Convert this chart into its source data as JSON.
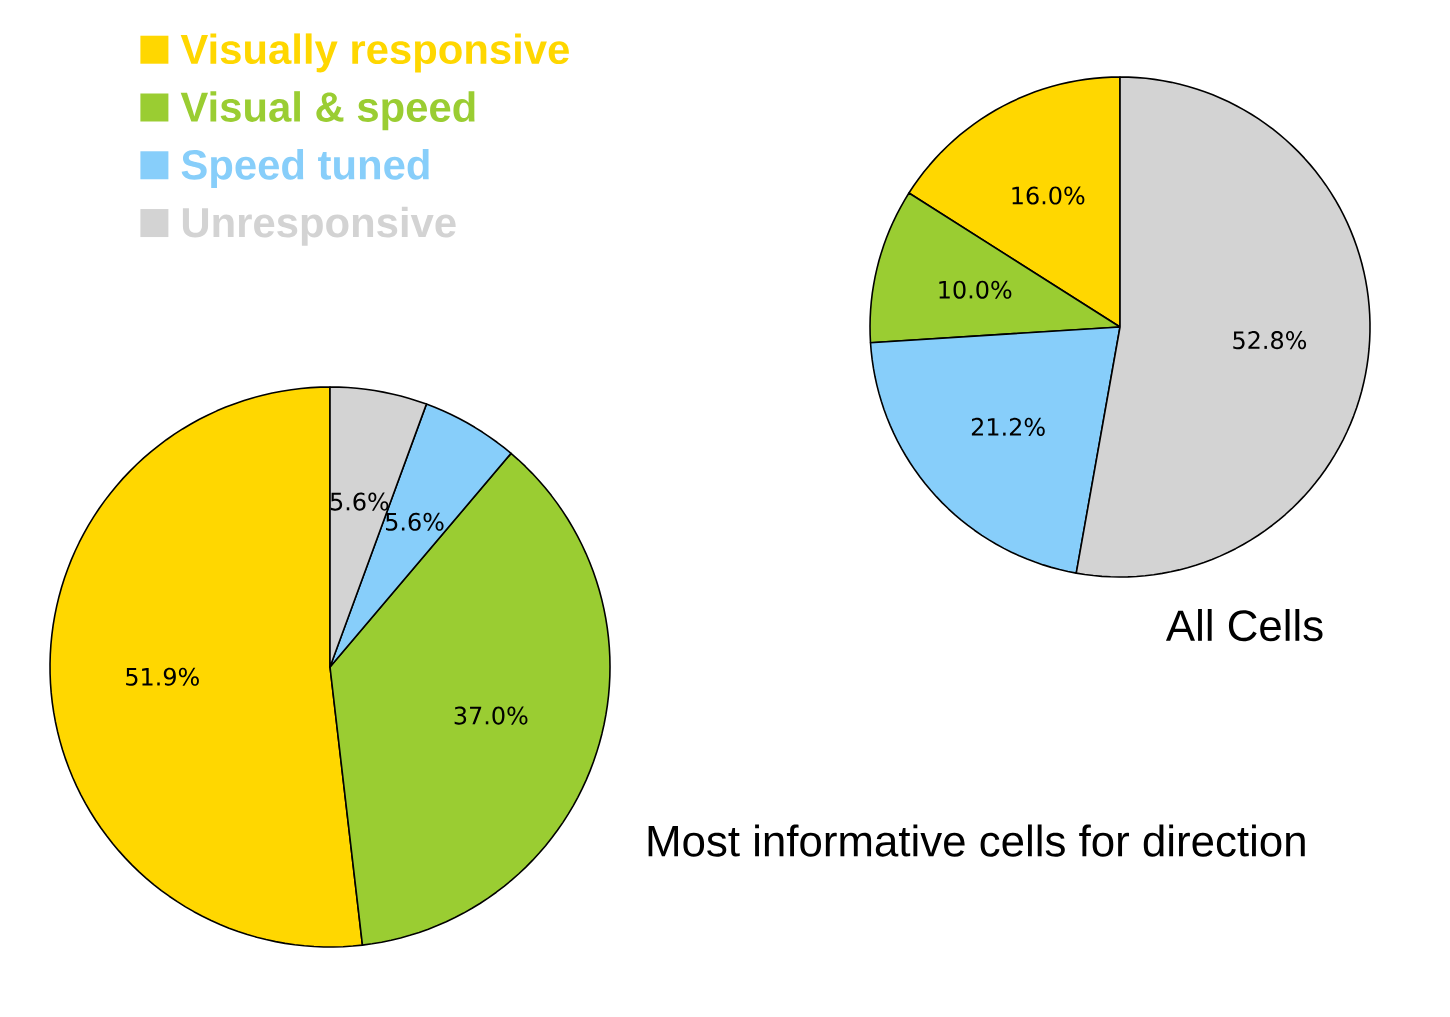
{
  "chart_data": [
    {
      "type": "pie",
      "title": "All Cells",
      "categories": [
        null,
        null,
        null,
        null
      ],
      "values": [
        16.0,
        10.0,
        21.2,
        52.8
      ],
      "colors": [
        "#ffd700",
        "#9acd32",
        "#87cefa",
        "#d3d3d3"
      ],
      "value_labels": [
        "16.0%",
        "10.0%",
        "21.2%",
        "52.8%"
      ]
    },
    {
      "type": "pie",
      "title": "Most informative cells for direction",
      "categories": [
        "Visually responsive",
        "Visual & speed",
        "Speed tuned",
        "Unresponsive"
      ],
      "values": [
        51.9,
        37.0,
        5.6,
        5.6
      ],
      "colors": [
        "#ffd700",
        "#9acd32",
        "#87cefa",
        "#d3d3d3"
      ],
      "value_labels": [
        "51.9%",
        "37.0%",
        "5.6%",
        "5.6%"
      ],
      "legend": "top left"
    }
  ]
}
